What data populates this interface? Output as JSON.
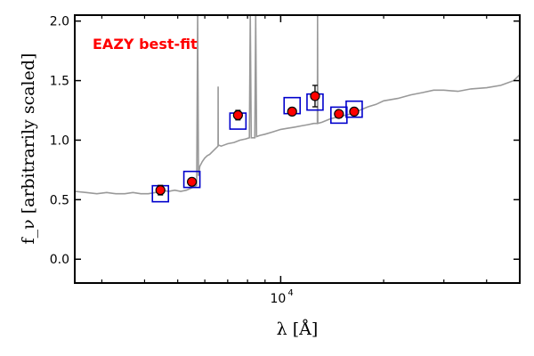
{
  "chart_data": {
    "type": "scatter",
    "title": "",
    "xlabel": "λ [Å]",
    "ylabel": "f_ν [arbitrarily scaled]",
    "xscale": "log",
    "xlim": [
      2500,
      50000
    ],
    "ylim": [
      -0.2,
      2.05
    ],
    "yticks": [
      0.0,
      0.5,
      1.0,
      1.5,
      2.0
    ],
    "ytick_labels": [
      "0.0",
      "0.5",
      "1.0",
      "1.5",
      "2.0"
    ],
    "xtick_major": [
      10000
    ],
    "xtick_major_label_base": "10",
    "xtick_major_label_exp": "4",
    "xtick_minor": [
      3000,
      4000,
      5000,
      6000,
      7000,
      8000,
      9000,
      20000,
      30000,
      40000
    ],
    "grid": false,
    "legend": "none",
    "annotation": {
      "text": "EAZY best-fit",
      "color": "#ff0000",
      "position": "top-left"
    },
    "colors": {
      "template": "#999999",
      "model": "#0000cc",
      "observed": "#ff0000"
    },
    "series": [
      {
        "kind": "line",
        "color": "#999999",
        "x": [
          2500,
          2700,
          2900,
          3100,
          3300,
          3500,
          3700,
          3900,
          4100,
          4300,
          4500,
          4700,
          4900,
          5100,
          5300,
          5500,
          5680,
          5720,
          5750,
          5800,
          5900,
          6000,
          6100,
          6200,
          6400,
          6560,
          6563,
          6566,
          6700,
          7000,
          7300,
          7600,
          7900,
          8100,
          8150,
          8200,
          8400,
          8450,
          8500,
          8700,
          9000,
          9500,
          10000,
          10500,
          11000,
          11500,
          12000,
          12500,
          12800,
          12820,
          12840,
          13200,
          14000,
          15000,
          16000,
          17000,
          18000,
          19000,
          20000,
          22000,
          24000,
          26000,
          28000,
          30000,
          33000,
          36000,
          40000,
          44000,
          48000,
          50000
        ],
        "y": [
          0.57,
          0.56,
          0.55,
          0.56,
          0.55,
          0.55,
          0.56,
          0.55,
          0.55,
          0.56,
          0.58,
          0.57,
          0.58,
          0.57,
          0.58,
          0.6,
          0.62,
          2.05,
          0.7,
          0.78,
          0.82,
          0.85,
          0.87,
          0.88,
          0.92,
          0.95,
          1.45,
          0.96,
          0.95,
          0.97,
          0.98,
          1.0,
          1.01,
          1.02,
          2.05,
          1.02,
          1.02,
          2.05,
          1.03,
          1.04,
          1.05,
          1.07,
          1.09,
          1.1,
          1.11,
          1.12,
          1.13,
          1.14,
          1.14,
          2.05,
          1.14,
          1.15,
          1.18,
          1.2,
          1.22,
          1.25,
          1.28,
          1.3,
          1.33,
          1.35,
          1.38,
          1.4,
          1.42,
          1.42,
          1.41,
          1.43,
          1.44,
          1.46,
          1.5,
          1.55
        ]
      },
      {
        "kind": "model",
        "marker": "square",
        "color": "#0000cc",
        "x": [
          4450,
          5500,
          7500,
          10800,
          12600,
          14800,
          16400
        ],
        "y": [
          0.55,
          0.67,
          1.16,
          1.29,
          1.32,
          1.21,
          1.26
        ]
      },
      {
        "kind": "observed",
        "marker": "circle",
        "color": "#ff0000",
        "x": [
          4450,
          5500,
          7500,
          10800,
          12600,
          14800,
          16400
        ],
        "y": [
          0.58,
          0.65,
          1.21,
          1.24,
          1.37,
          1.22,
          1.24
        ],
        "yerr": [
          0.04,
          0.02,
          0.04,
          0.03,
          0.09,
          0.03,
          0.03
        ]
      }
    ]
  }
}
